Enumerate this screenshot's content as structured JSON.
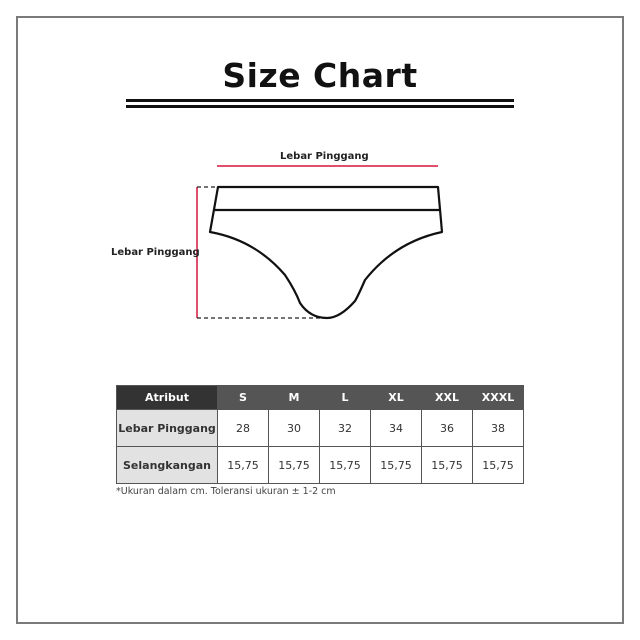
{
  "title": "Size Chart",
  "diagram": {
    "top_label": "Lebar Pinggang",
    "side_label": "Lebar Pinggang",
    "measure_color": "#d6163c"
  },
  "table": {
    "header": [
      "Atribut",
      "S",
      "M",
      "L",
      "XL",
      "XXL",
      "XXXL"
    ],
    "rows": [
      {
        "label": "Lebar Pinggang",
        "values": [
          "28",
          "30",
          "32",
          "34",
          "36",
          "38"
        ]
      },
      {
        "label": "Selangkangan",
        "values": [
          "15,75",
          "15,75",
          "15,75",
          "15,75",
          "15,75",
          "15,75"
        ]
      }
    ]
  },
  "note": "*Ukuran dalam cm. Toleransi ukuran ± 1-2 cm"
}
